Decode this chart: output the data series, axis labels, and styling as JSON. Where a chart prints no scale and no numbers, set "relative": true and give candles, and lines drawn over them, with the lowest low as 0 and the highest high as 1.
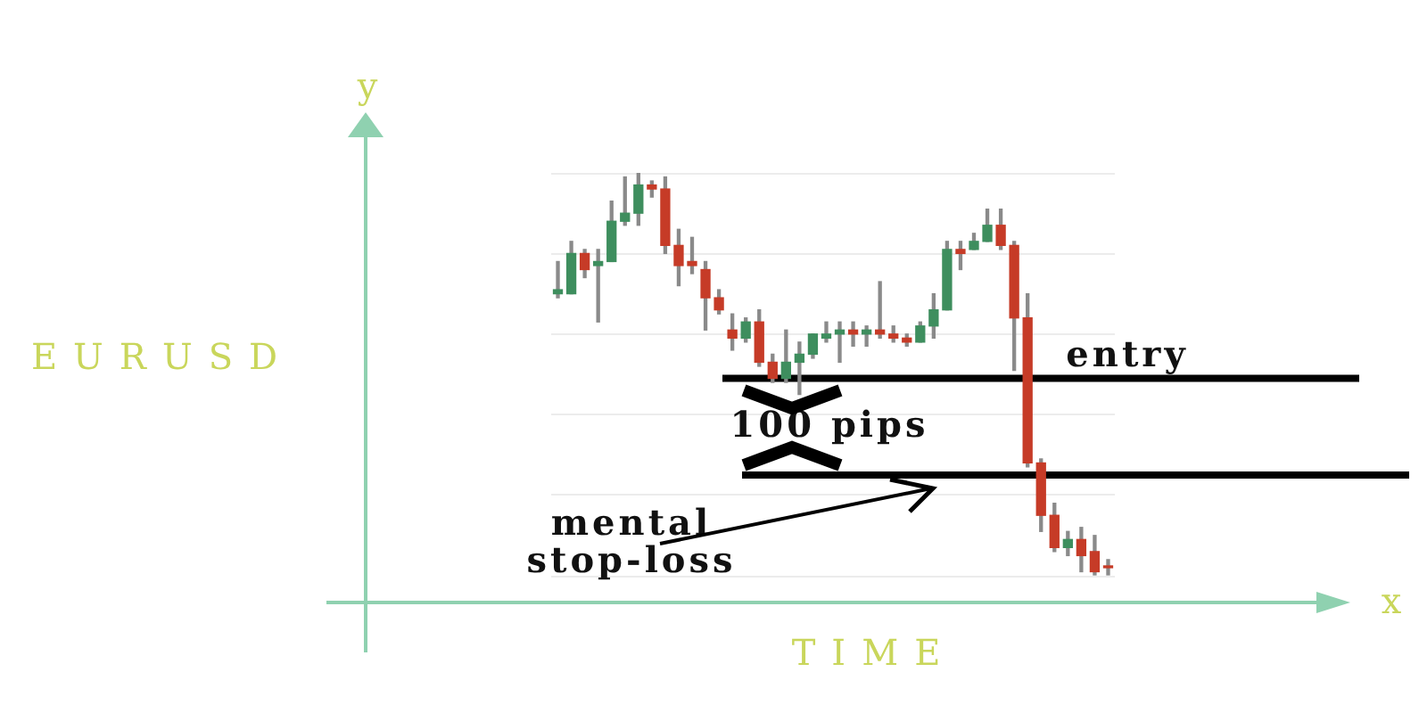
{
  "chart_data": {
    "type": "candlestick",
    "xlabel": "TIME",
    "relative": true,
    "grid": "y",
    "tick_labels": false,
    "categories": [
      null,
      null,
      null,
      null,
      null,
      null,
      null,
      null,
      null,
      null,
      null,
      null,
      null,
      null,
      null,
      null,
      null,
      null,
      null,
      null,
      null,
      null,
      null,
      null,
      null,
      null,
      null,
      null,
      null,
      null,
      null,
      null,
      null,
      null,
      null,
      null,
      null,
      null,
      null,
      null,
      null,
      null
    ],
    "ohlc": [
      [
        0.7,
        0.78,
        0.69,
        0.71
      ],
      [
        0.7,
        0.83,
        0.7,
        0.8
      ],
      [
        0.8,
        0.81,
        0.74,
        0.76
      ],
      [
        0.77,
        0.81,
        0.63,
        0.78
      ],
      [
        0.78,
        0.93,
        0.78,
        0.88
      ],
      [
        0.88,
        0.99,
        0.87,
        0.9
      ],
      [
        0.9,
        1.0,
        0.87,
        0.97
      ],
      [
        0.97,
        0.98,
        0.94,
        0.96
      ],
      [
        0.96,
        0.99,
        0.8,
        0.82
      ],
      [
        0.82,
        0.86,
        0.72,
        0.77
      ],
      [
        0.78,
        0.84,
        0.75,
        0.77
      ],
      [
        0.76,
        0.78,
        0.61,
        0.69
      ],
      [
        0.69,
        0.71,
        0.65,
        0.66
      ],
      [
        0.61,
        0.65,
        0.56,
        0.59
      ],
      [
        0.59,
        0.64,
        0.58,
        0.63
      ],
      [
        0.63,
        0.66,
        0.52,
        0.53
      ],
      [
        0.53,
        0.55,
        0.48,
        0.49
      ],
      [
        0.49,
        0.61,
        0.48,
        0.53
      ],
      [
        0.53,
        0.58,
        0.45,
        0.55
      ],
      [
        0.55,
        0.6,
        0.54,
        0.6
      ],
      [
        0.59,
        0.63,
        0.58,
        0.6
      ],
      [
        0.6,
        0.63,
        0.53,
        0.61
      ],
      [
        0.61,
        0.63,
        0.57,
        0.6
      ],
      [
        0.6,
        0.62,
        0.57,
        0.61
      ],
      [
        0.61,
        0.73,
        0.59,
        0.6
      ],
      [
        0.6,
        0.62,
        0.58,
        0.59
      ],
      [
        0.59,
        0.6,
        0.57,
        0.58
      ],
      [
        0.58,
        0.63,
        0.58,
        0.62
      ],
      [
        0.62,
        0.7,
        0.59,
        0.66
      ],
      [
        0.66,
        0.83,
        0.66,
        0.81
      ],
      [
        0.81,
        0.83,
        0.76,
        0.8
      ],
      [
        0.81,
        0.85,
        0.81,
        0.83
      ],
      [
        0.83,
        0.91,
        0.83,
        0.87
      ],
      [
        0.87,
        0.91,
        0.81,
        0.82
      ],
      [
        0.82,
        0.83,
        0.51,
        0.64
      ],
      [
        0.64,
        0.7,
        0.27,
        0.28
      ],
      [
        0.28,
        0.29,
        0.11,
        0.15
      ],
      [
        0.15,
        0.18,
        0.06,
        0.07
      ],
      [
        0.07,
        0.11,
        0.05,
        0.09
      ],
      [
        0.09,
        0.12,
        0.01,
        0.05
      ],
      [
        0.06,
        0.1,
        0.0,
        0.01
      ],
      [
        0.02,
        0.04,
        0.0,
        0.02
      ]
    ],
    "colors": [
      "#3e8e5e",
      "#3e8e5e",
      "#c63b27",
      "#3e8e5e",
      "#3e8e5e",
      "#3e8e5e",
      "#3e8e5e",
      "#c63b27",
      "#c63b27",
      "#c63b27",
      "#c63b27",
      "#c63b27",
      "#c63b27",
      "#c63b27",
      "#3e8e5e",
      "#c63b27",
      "#c63b27",
      "#3e8e5e",
      "#3e8e5e",
      "#3e8e5e",
      "#3e8e5e",
      "#3e8e5e",
      "#c63b27",
      "#3e8e5e",
      "#c63b27",
      "#c63b27",
      "#c63b27",
      "#3e8e5e",
      "#3e8e5e",
      "#3e8e5e",
      "#c63b27",
      "#3e8e5e",
      "#3e8e5e",
      "#c63b27",
      "#c63b27",
      "#c63b27",
      "#c63b27",
      "#c63b27",
      "#3e8e5e",
      "#c63b27",
      "#c63b27",
      "#c63b27"
    ],
    "ref_lines": [
      {
        "axis": "y",
        "value": 0.49,
        "label": "entry",
        "color": "#000000",
        "line_style": "solid"
      },
      {
        "axis": "y",
        "value": 0.25,
        "label": "mental stop-loss",
        "color": "#000000",
        "line_style": "solid"
      }
    ],
    "annotations": [
      "y",
      "x",
      "100 pips",
      "EURUSD"
    ]
  }
}
